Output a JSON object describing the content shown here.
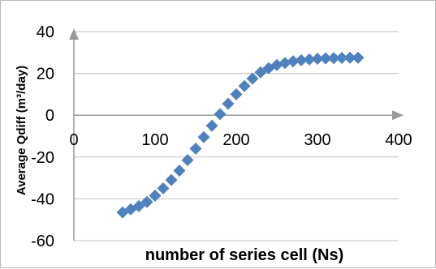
{
  "chart_data": {
    "type": "scatter",
    "title": "",
    "xlabel": "number of series cell (Ns)",
    "ylabel": "Average Qdiff (m³/day)",
    "xlim": [
      0,
      400
    ],
    "ylim": [
      -60,
      40
    ],
    "x_ticks": [
      "0",
      "100",
      "200",
      "300",
      "400"
    ],
    "y_ticks": [
      "40",
      "20",
      "0",
      "-20",
      "-40",
      "-60"
    ],
    "grid": true,
    "legend": "none",
    "marker": "diamond",
    "marker_color": "#4f81bd",
    "gridline_color": "#bfbfbf",
    "axis_color": "#999999",
    "series": [
      {
        "x": [
          60,
          70,
          80,
          90,
          100,
          110,
          120,
          130,
          140,
          150,
          160,
          170,
          180,
          190,
          200,
          210,
          220,
          230,
          240,
          250,
          260,
          270,
          280,
          290,
          300,
          310,
          320,
          330,
          340,
          350
        ],
        "y": [
          -46.5,
          -45,
          -43.5,
          -41.5,
          -38.5,
          -35,
          -31,
          -26.5,
          -21.5,
          -16,
          -10.5,
          -5,
          0.5,
          5.5,
          10,
          14,
          17.5,
          20.5,
          22.5,
          24,
          25,
          25.8,
          26.3,
          26.7,
          27,
          27.2,
          27.3,
          27.4,
          27.5,
          27.5
        ]
      }
    ]
  }
}
